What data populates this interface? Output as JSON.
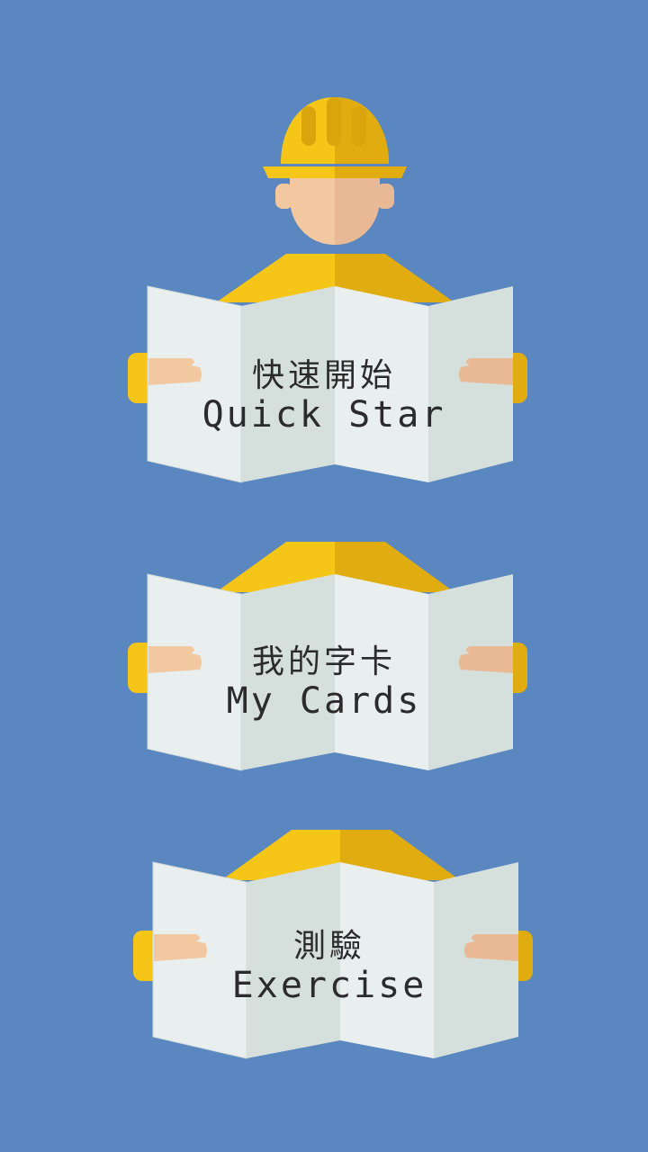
{
  "colors": {
    "background": "#5a87bf",
    "helmet": "#f5c518",
    "helmet_shade": "#e0ac10",
    "skin": "#f2c8a0",
    "skin_shade": "#e8b994",
    "paper": "#e8efee",
    "paper_shade": "#d5dfdc",
    "text": "#2b2b2b"
  },
  "icons": {
    "worker": "construction-worker-with-hardhat-icon",
    "newspaper": "folded-newspaper-icon"
  },
  "menu": [
    {
      "label_zh": "快速開始",
      "label_en": "Quick Star"
    },
    {
      "label_zh": "我的字卡",
      "label_en": "My Cards"
    },
    {
      "label_zh": "測驗",
      "label_en": "Exercise"
    }
  ]
}
